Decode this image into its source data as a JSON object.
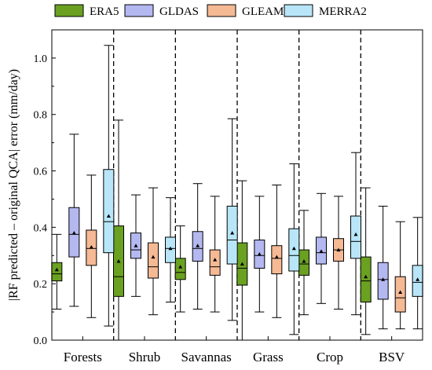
{
  "chart_data": {
    "type": "box",
    "ylabel": "|RF predicted – original QCA| error (mm/day)",
    "ylim": [
      0.0,
      1.1
    ],
    "yticks": [
      "0.0",
      "0.2",
      "0.4",
      "0.6",
      "0.8",
      "1.0"
    ],
    "categories": [
      "Forests",
      "Shrub",
      "Savannas",
      "Grass",
      "Crop",
      "BSV"
    ],
    "legend_position": "top",
    "series": [
      {
        "name": "ERA5",
        "color": "#6aa121",
        "boxes": [
          {
            "whisker_low": 0.11,
            "q1": 0.21,
            "median": 0.235,
            "q3": 0.275,
            "whisker_high": 0.375,
            "mean": 0.25
          },
          {
            "whisker_low": 0.0,
            "q1": 0.155,
            "median": 0.225,
            "q3": 0.405,
            "whisker_high": 0.78,
            "mean": 0.28
          },
          {
            "whisker_low": 0.1,
            "q1": 0.215,
            "median": 0.24,
            "q3": 0.29,
            "whisker_high": 0.405,
            "mean": 0.26
          },
          {
            "whisker_low": 0.0,
            "q1": 0.195,
            "median": 0.255,
            "q3": 0.345,
            "whisker_high": 0.565,
            "mean": 0.27
          },
          {
            "whisker_low": 0.09,
            "q1": 0.23,
            "median": 0.27,
            "q3": 0.32,
            "whisker_high": 0.46,
            "mean": 0.28
          },
          {
            "whisker_low": 0.02,
            "q1": 0.135,
            "median": 0.21,
            "q3": 0.295,
            "whisker_high": 0.54,
            "mean": 0.225
          }
        ]
      },
      {
        "name": "GLDAS",
        "color": "#b4b8f0",
        "boxes": [
          {
            "whisker_low": 0.12,
            "q1": 0.295,
            "median": 0.375,
            "q3": 0.47,
            "whisker_high": 0.73,
            "mean": 0.38
          },
          {
            "whisker_low": 0.155,
            "q1": 0.29,
            "median": 0.32,
            "q3": 0.38,
            "whisker_high": 0.515,
            "mean": 0.335
          },
          {
            "whisker_low": 0.11,
            "q1": 0.28,
            "median": 0.325,
            "q3": 0.385,
            "whisker_high": 0.555,
            "mean": 0.335
          },
          {
            "whisker_low": 0.1,
            "q1": 0.255,
            "median": 0.3,
            "q3": 0.355,
            "whisker_high": 0.51,
            "mean": 0.305
          },
          {
            "whisker_low": 0.13,
            "q1": 0.27,
            "median": 0.31,
            "q3": 0.365,
            "whisker_high": 0.52,
            "mean": 0.315
          },
          {
            "whisker_low": 0.04,
            "q1": 0.145,
            "median": 0.215,
            "q3": 0.275,
            "whisker_high": 0.475,
            "mean": 0.215
          }
        ]
      },
      {
        "name": "GLEAM",
        "color": "#f5b994",
        "boxes": [
          {
            "whisker_low": 0.08,
            "q1": 0.265,
            "median": 0.325,
            "q3": 0.39,
            "whisker_high": 0.585,
            "mean": 0.33
          },
          {
            "whisker_low": 0.09,
            "q1": 0.22,
            "median": 0.26,
            "q3": 0.345,
            "whisker_high": 0.54,
            "mean": 0.295
          },
          {
            "whisker_low": 0.1,
            "q1": 0.23,
            "median": 0.26,
            "q3": 0.32,
            "whisker_high": 0.51,
            "mean": 0.285
          },
          {
            "whisker_low": 0.08,
            "q1": 0.235,
            "median": 0.29,
            "q3": 0.335,
            "whisker_high": 0.55,
            "mean": 0.295
          },
          {
            "whisker_low": 0.11,
            "q1": 0.28,
            "median": 0.32,
            "q3": 0.36,
            "whisker_high": 0.51,
            "mean": 0.32
          },
          {
            "whisker_low": 0.04,
            "q1": 0.1,
            "median": 0.15,
            "q3": 0.225,
            "whisker_high": 0.42,
            "mean": 0.17
          }
        ]
      },
      {
        "name": "MERRA2",
        "color": "#b8e6f8",
        "boxes": [
          {
            "whisker_low": 0.05,
            "q1": 0.31,
            "median": 0.42,
            "q3": 0.605,
            "whisker_high": 1.045,
            "mean": 0.44
          },
          {
            "whisker_low": 0.135,
            "q1": 0.275,
            "median": 0.325,
            "q3": 0.365,
            "whisker_high": 0.505,
            "mean": 0.325
          },
          {
            "whisker_low": 0.07,
            "q1": 0.27,
            "median": 0.355,
            "q3": 0.475,
            "whisker_high": 0.785,
            "mean": 0.38
          },
          {
            "whisker_low": 0.02,
            "q1": 0.245,
            "median": 0.3,
            "q3": 0.395,
            "whisker_high": 0.625,
            "mean": 0.325
          },
          {
            "whisker_low": 0.09,
            "q1": 0.29,
            "median": 0.35,
            "q3": 0.44,
            "whisker_high": 0.665,
            "mean": 0.375
          },
          {
            "whisker_low": 0.04,
            "q1": 0.155,
            "median": 0.205,
            "q3": 0.265,
            "whisker_high": 0.435,
            "mean": 0.215
          }
        ]
      }
    ]
  }
}
